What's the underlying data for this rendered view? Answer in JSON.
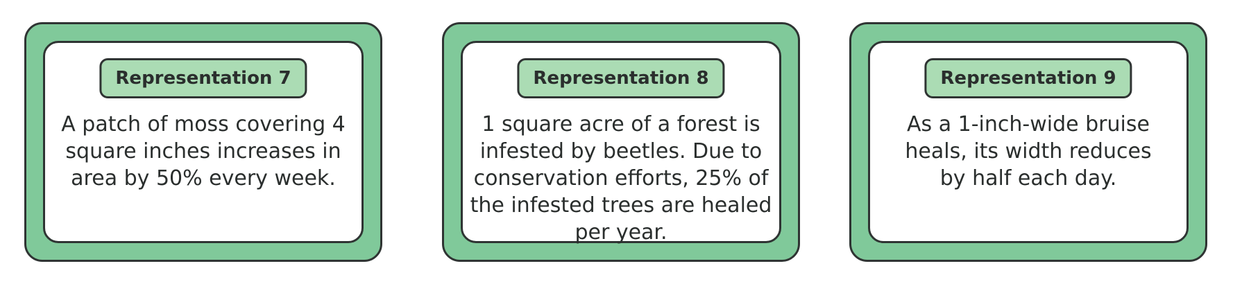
{
  "cards": [
    {
      "label": "Representation 7",
      "text": "A patch of moss covering 4 square inches increases in area by 50% every week."
    },
    {
      "label": "Representation 8",
      "text": "1 square acre of a forest is infested by beetles. Due to conservation efforts, 25% of the infested trees are healed per year."
    },
    {
      "label": "Representation 9",
      "text": "As a 1-inch-wide bruise heals, its width reduces by half each day."
    }
  ],
  "colors": {
    "card_border": "#80c99a",
    "label_background": "#abdcb4",
    "outline": "#2f3433"
  }
}
